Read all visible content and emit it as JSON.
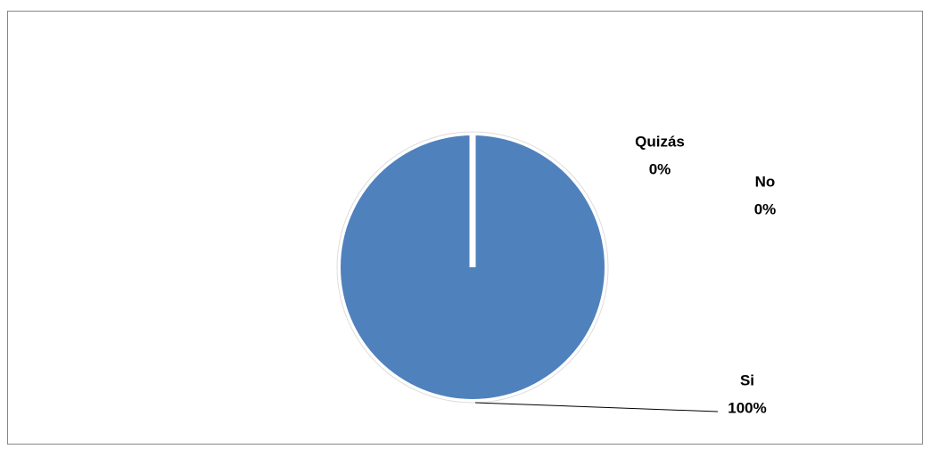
{
  "chart_data": {
    "type": "pie",
    "categories": [
      "Si",
      "No",
      "Quizás"
    ],
    "values": [
      100,
      0,
      0
    ],
    "value_labels": [
      "100%",
      "0%",
      "0%"
    ],
    "color": "#4f81bd"
  }
}
